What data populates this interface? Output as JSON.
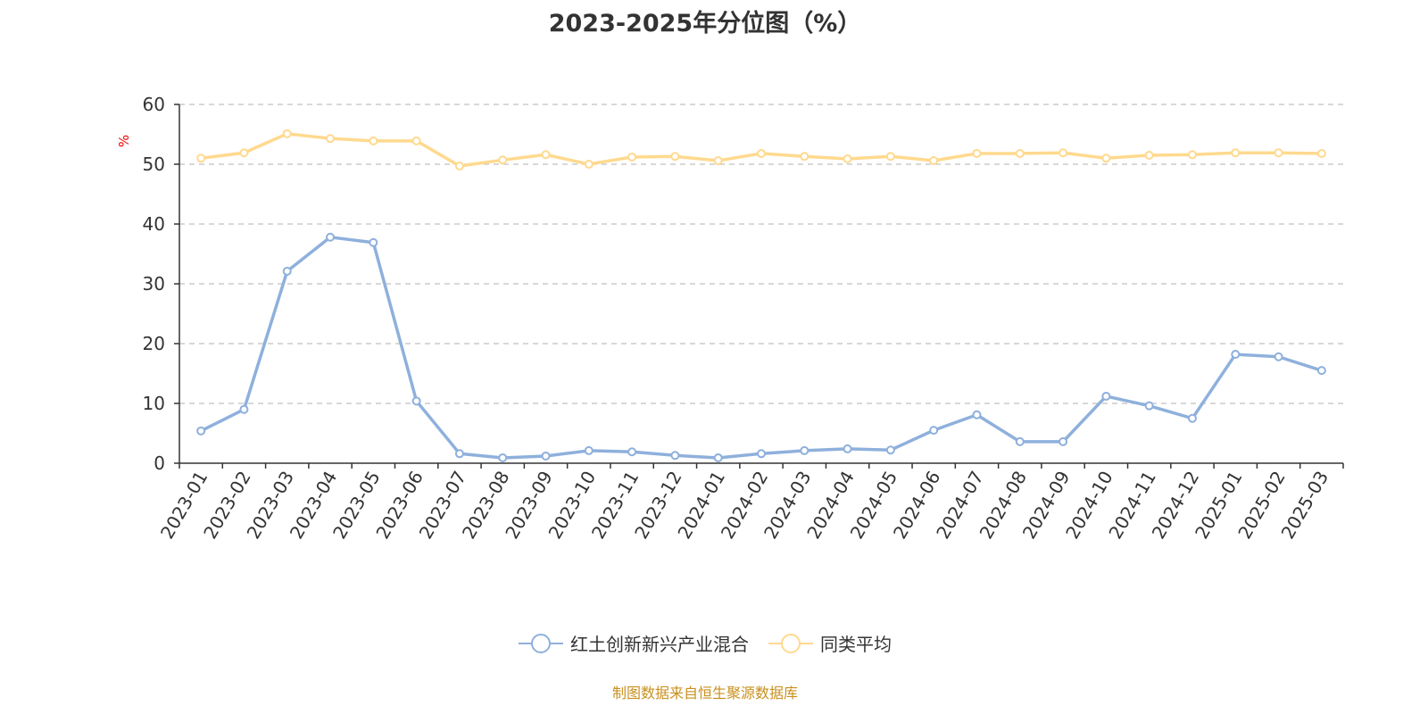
{
  "chart_data": {
    "type": "line",
    "title": "2023-2025年分位图（%）",
    "ylabel": "%",
    "xlabel": "",
    "ylim": [
      0,
      60
    ],
    "yticks": [
      0,
      10,
      20,
      30,
      40,
      50,
      60
    ],
    "grid": true,
    "legend_position": "bottom",
    "categories": [
      "2023-01",
      "2023-02",
      "2023-03",
      "2023-04",
      "2023-05",
      "2023-06",
      "2023-07",
      "2023-08",
      "2023-09",
      "2023-10",
      "2023-11",
      "2023-12",
      "2024-01",
      "2024-02",
      "2024-03",
      "2024-04",
      "2024-05",
      "2024-06",
      "2024-07",
      "2024-08",
      "2024-09",
      "2024-10",
      "2024-11",
      "2024-12",
      "2025-01",
      "2025-02",
      "2025-03"
    ],
    "series": [
      {
        "name": "红土创新新兴产业混合",
        "color": "#8eb0dc",
        "values": [
          5.4,
          9.0,
          32.1,
          37.8,
          36.9,
          10.4,
          1.6,
          0.9,
          1.2,
          2.1,
          1.9,
          1.3,
          0.9,
          1.6,
          2.1,
          2.4,
          2.2,
          5.5,
          8.1,
          3.6,
          3.6,
          11.2,
          9.6,
          7.5,
          18.2,
          17.8,
          15.5
        ]
      },
      {
        "name": "同类平均",
        "color": "#ffd98e",
        "values": [
          51.0,
          51.9,
          55.1,
          54.3,
          53.9,
          53.9,
          49.7,
          50.7,
          51.6,
          50.0,
          51.2,
          51.3,
          50.6,
          51.8,
          51.3,
          50.9,
          51.3,
          50.6,
          51.8,
          51.8,
          51.9,
          51.0,
          51.5,
          51.6,
          51.9,
          51.9,
          51.8
        ]
      }
    ]
  },
  "footer": "制图数据来自恒生聚源数据库"
}
